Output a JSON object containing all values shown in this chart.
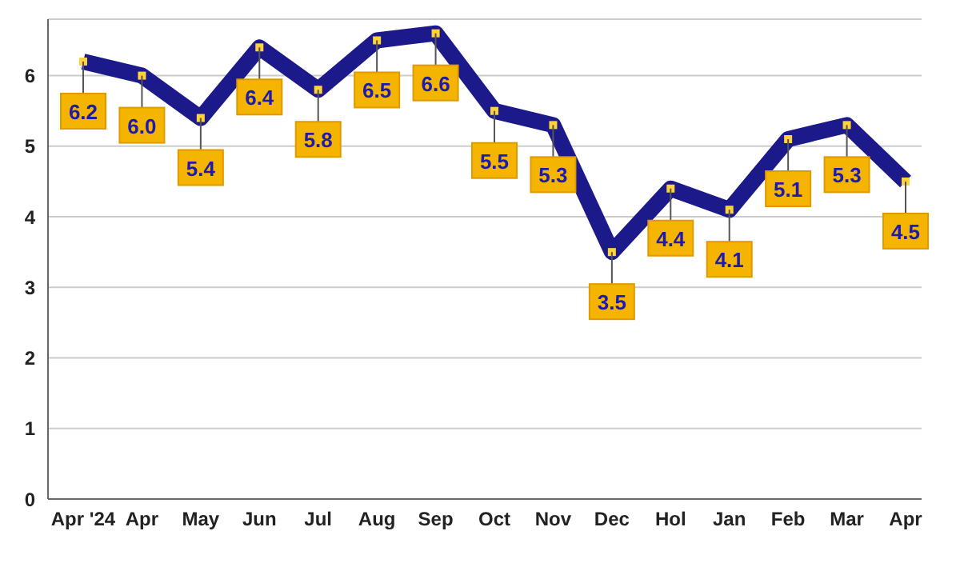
{
  "chart_data": {
    "type": "line",
    "categories": [
      "Apr '24",
      "Apr",
      "May",
      "Jun",
      "Jul",
      "Aug",
      "Sep",
      "Oct",
      "Nov",
      "Dec",
      "Hol",
      "Jan",
      "Feb",
      "Mar",
      "Apr"
    ],
    "series": [
      {
        "color": "#1c1a8a",
        "values": [
          6.2,
          6.0,
          5.4,
          6.4,
          5.8,
          6.5,
          6.6,
          5.5,
          5.3,
          3.5,
          4.4,
          4.1,
          5.1,
          5.3,
          4.5
        ],
        "value_labels": [
          "6.2",
          "6.0",
          "5.4",
          "6.4",
          "5.8",
          "6.5",
          "6.6",
          "5.5",
          "5.3",
          "3.5",
          "4.4",
          "4.1",
          "5.1",
          "5.3",
          "4.5"
        ]
      }
    ],
    "ylim": [
      0,
      6.8
    ],
    "yticks": [
      0,
      1,
      2,
      3,
      4,
      5,
      6
    ],
    "grid": "y",
    "marker": "square",
    "line_style": "solid",
    "legend": false
  }
}
